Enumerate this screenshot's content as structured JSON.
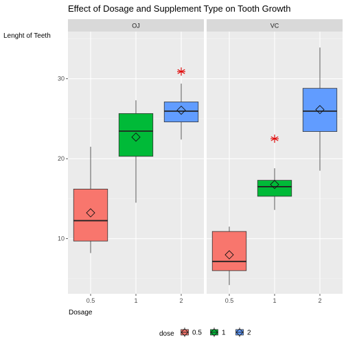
{
  "chart_data": {
    "type": "boxplot",
    "title": "Effect of Dosage and Supplement Type on Tooth Growth",
    "xlabel": "Dosage",
    "ylabel": "Lenght of Teeth",
    "categories": [
      "0.5",
      "1",
      "2"
    ],
    "y_ticks": [
      10,
      20,
      30
    ],
    "ylim": [
      3.1,
      35.9
    ],
    "grid": true,
    "legend": {
      "title": "dose",
      "position": "bottom",
      "entries": [
        {
          "label": "0.5",
          "color": "#F8766D"
        },
        {
          "label": "1",
          "color": "#00BA38"
        },
        {
          "label": "2",
          "color": "#619CFF"
        }
      ]
    },
    "panels": [
      {
        "strip": "OJ",
        "boxes": [
          {
            "dose": "0.5",
            "min": 8.2,
            "q1": 9.7,
            "median": 12.25,
            "q3": 16.2,
            "max": 21.5,
            "mean": 13.23
          },
          {
            "dose": "1",
            "min": 14.5,
            "q1": 20.3,
            "median": 23.45,
            "q3": 25.65,
            "max": 27.3,
            "mean": 22.7
          },
          {
            "dose": "2",
            "min": 22.4,
            "q1": 24.6,
            "median": 25.95,
            "q3": 27.1,
            "max": 29.4,
            "mean": 26.06
          }
        ],
        "outliers": [
          {
            "dose": "2",
            "value": 30.9
          }
        ]
      },
      {
        "strip": "VC",
        "boxes": [
          {
            "dose": "0.5",
            "min": 4.2,
            "q1": 6.0,
            "median": 7.15,
            "q3": 10.9,
            "max": 11.5,
            "mean": 7.98
          },
          {
            "dose": "1",
            "min": 13.6,
            "q1": 15.3,
            "median": 16.5,
            "q3": 17.3,
            "max": 18.8,
            "mean": 16.77
          },
          {
            "dose": "2",
            "min": 18.5,
            "q1": 23.4,
            "median": 25.95,
            "q3": 28.8,
            "max": 33.9,
            "mean": 26.14
          }
        ],
        "outliers": [
          {
            "dose": "1",
            "value": 22.5
          }
        ]
      }
    ],
    "outlier_color": "#E00000"
  }
}
